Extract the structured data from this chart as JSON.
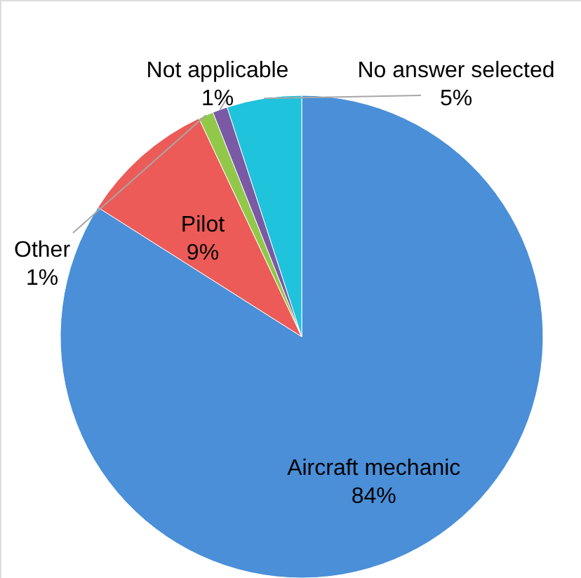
{
  "chart_data": {
    "type": "pie",
    "categories": [
      "Aircraft mechanic",
      "Pilot",
      "Other",
      "Not applicable",
      "No answer selected"
    ],
    "values": [
      84,
      9,
      1,
      1,
      5
    ],
    "value_labels": [
      "84%",
      "9%",
      "1%",
      "1%",
      "5%"
    ],
    "colors": [
      "#4a8fd8",
      "#ec5b57",
      "#92c84a",
      "#7a5aa5",
      "#1fc3dc"
    ]
  }
}
